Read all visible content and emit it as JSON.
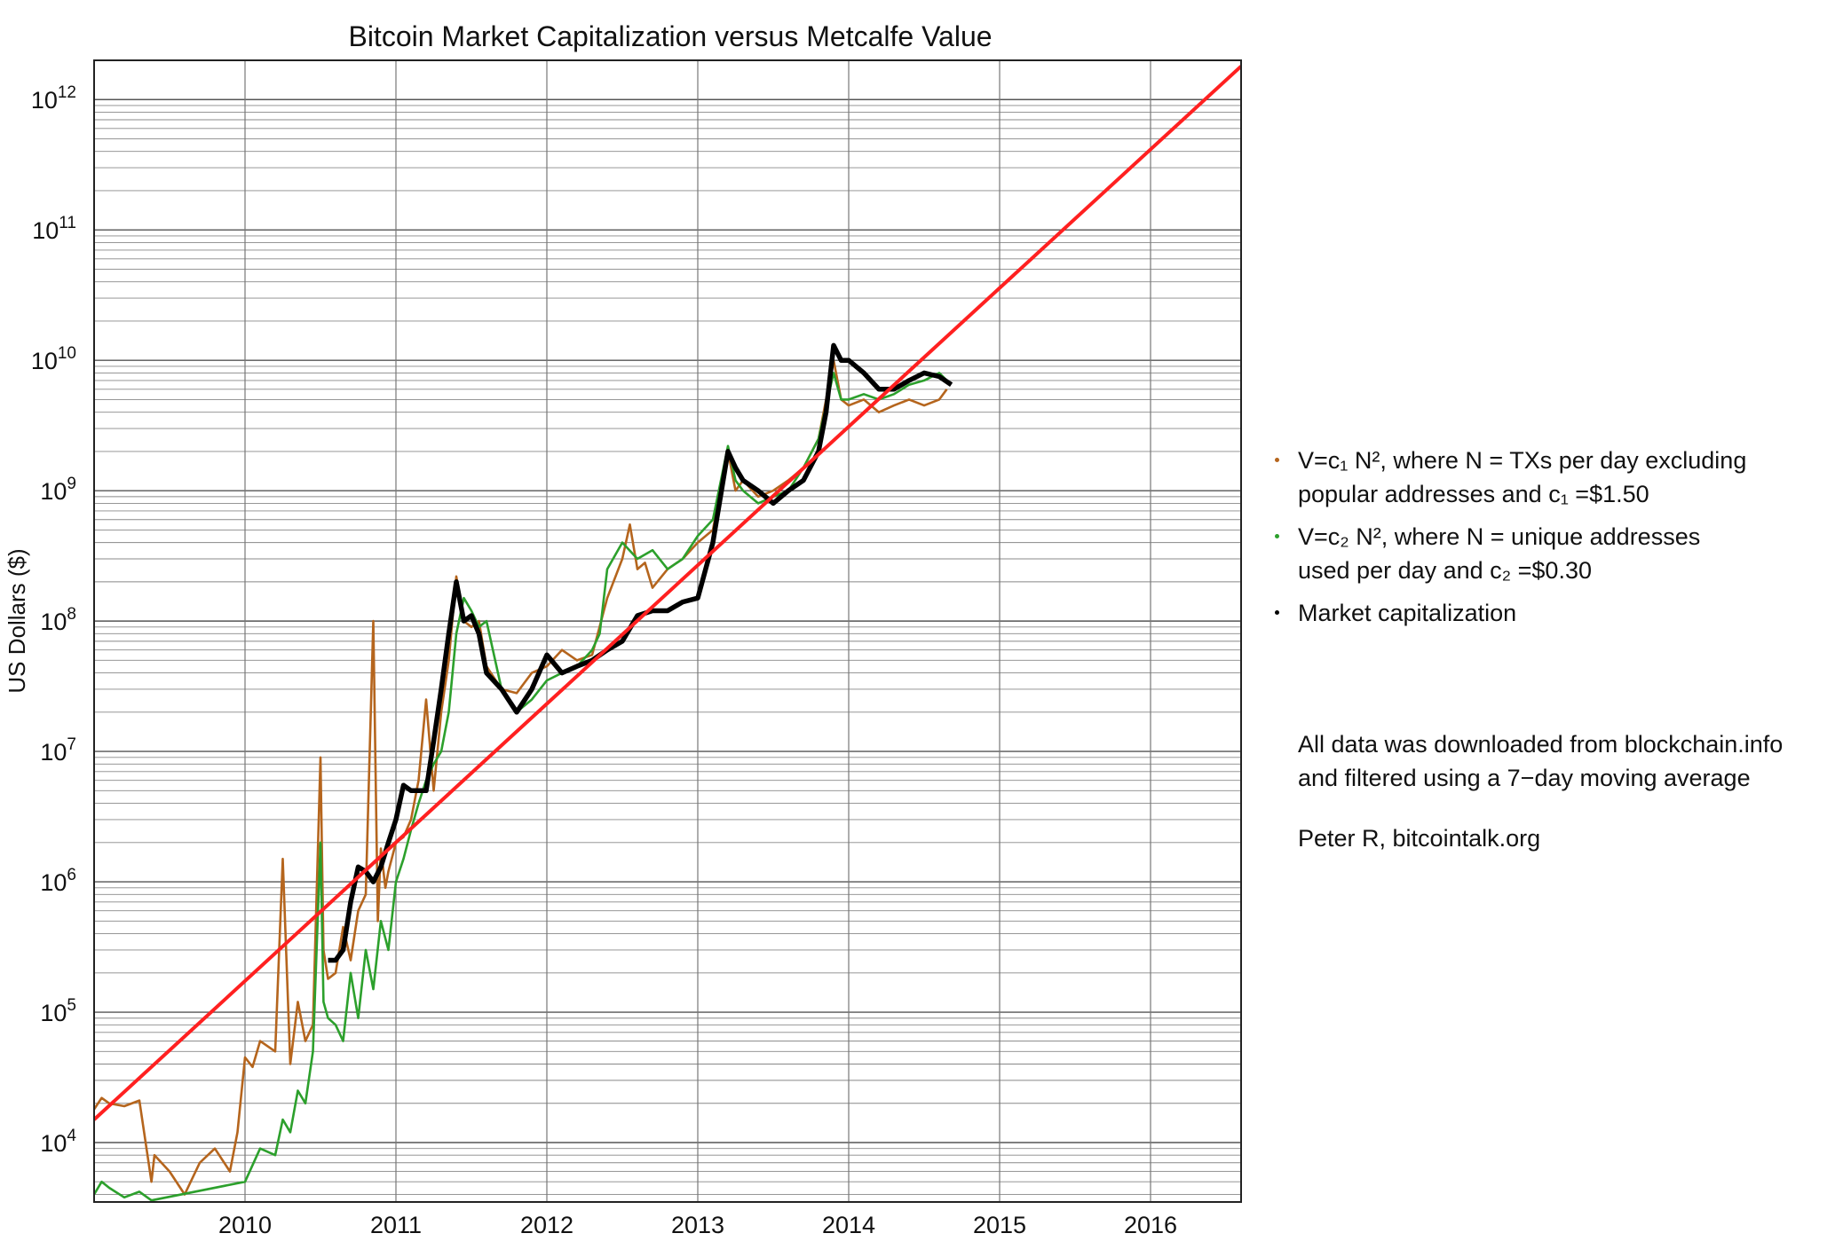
{
  "chart_data": {
    "type": "line",
    "title": "Bitcoin Market Capitalization versus Metcalfe Value",
    "ylabel": "US Dollars ($)",
    "xlabel": "",
    "x_scale": "time",
    "y_scale": "log",
    "xlim": [
      2009.0,
      2016.6
    ],
    "ylim": [
      3500,
      2000000000000
    ],
    "x_ticks": [
      2010,
      2011,
      2012,
      2013,
      2014,
      2015,
      2016
    ],
    "x_tick_labels": [
      "2010",
      "2011",
      "2012",
      "2013",
      "2014",
      "2015",
      "2016"
    ],
    "y_ticks": [
      10000,
      100000,
      1000000,
      10000000,
      100000000,
      1000000000,
      10000000000,
      100000000000,
      1000000000000
    ],
    "y_tick_labels": [
      {
        "base": "10",
        "exp": "4"
      },
      {
        "base": "10",
        "exp": "5"
      },
      {
        "base": "10",
        "exp": "6"
      },
      {
        "base": "10",
        "exp": "7"
      },
      {
        "base": "10",
        "exp": "8"
      },
      {
        "base": "10",
        "exp": "9"
      },
      {
        "base": "10",
        "exp": "10"
      },
      {
        "base": "10",
        "exp": "11"
      },
      {
        "base": "10",
        "exp": "12"
      }
    ],
    "grid": true,
    "legend_position": "right",
    "series": [
      {
        "name": "V=c1 N^2, where N = TXs per day excluding popular addresses and c1 =$1.50",
        "color": "#b5651d",
        "x": [
          2009.0,
          2009.05,
          2009.1,
          2009.2,
          2009.3,
          2009.38,
          2009.4,
          2009.5,
          2009.6,
          2009.7,
          2009.8,
          2009.9,
          2009.95,
          2010.0,
          2010.05,
          2010.1,
          2010.2,
          2010.25,
          2010.3,
          2010.35,
          2010.4,
          2010.45,
          2010.5,
          2010.52,
          2010.55,
          2010.6,
          2010.65,
          2010.7,
          2010.75,
          2010.8,
          2010.85,
          2010.88,
          2010.9,
          2010.93,
          2010.95,
          2011.0,
          2011.05,
          2011.1,
          2011.15,
          2011.2,
          2011.25,
          2011.3,
          2011.35,
          2011.4,
          2011.45,
          2011.5,
          2011.55,
          2011.6,
          2011.7,
          2011.8,
          2011.9,
          2012.0,
          2012.1,
          2012.2,
          2012.3,
          2012.4,
          2012.5,
          2012.55,
          2012.6,
          2012.65,
          2012.7,
          2012.8,
          2012.9,
          2013.0,
          2013.1,
          2013.2,
          2013.25,
          2013.3,
          2013.4,
          2013.5,
          2013.6,
          2013.7,
          2013.8,
          2013.9,
          2013.95,
          2014.0,
          2014.1,
          2014.2,
          2014.3,
          2014.4,
          2014.5,
          2014.6,
          2014.65
        ],
        "values": [
          18000,
          22000,
          20000,
          19000,
          21000,
          5000,
          8000,
          6000,
          4000,
          7000,
          9000,
          6000,
          12000,
          45000,
          38000,
          60000,
          50000,
          1500000,
          40000,
          120000,
          60000,
          80000,
          9000000,
          300000,
          180000,
          200000,
          450000,
          250000,
          600000,
          800000,
          100000000,
          500000,
          1800000,
          900000,
          1200000,
          2000000,
          2200000,
          3000000,
          6000000,
          25000000,
          5000000,
          20000000,
          50000000,
          220000000,
          100000000,
          90000000,
          100000000,
          45000000,
          30000000,
          28000000,
          40000000,
          45000000,
          60000000,
          50000000,
          55000000,
          150000000,
          300000000,
          550000000,
          250000000,
          280000000,
          180000000,
          250000000,
          300000000,
          400000000,
          500000000,
          2000000000,
          1000000000,
          1200000000,
          900000000,
          1000000000,
          1200000000,
          1500000000,
          2500000000,
          10000000000,
          5000000000,
          4500000000,
          5000000000,
          4000000000,
          4500000000,
          5000000000,
          4500000000,
          5000000000,
          6000000000
        ]
      },
      {
        "name": "V=c2 N^2, where N = unique addresses used per day and c2 =$0.30",
        "color": "#2ca02c",
        "x": [
          2009.0,
          2009.05,
          2009.1,
          2009.2,
          2009.3,
          2009.38,
          2010.0,
          2010.1,
          2010.2,
          2010.25,
          2010.3,
          2010.35,
          2010.4,
          2010.45,
          2010.5,
          2010.52,
          2010.55,
          2010.6,
          2010.65,
          2010.7,
          2010.75,
          2010.8,
          2010.85,
          2010.9,
          2010.95,
          2011.0,
          2011.05,
          2011.1,
          2011.15,
          2011.2,
          2011.25,
          2011.3,
          2011.35,
          2011.4,
          2011.45,
          2011.5,
          2011.55,
          2011.6,
          2011.7,
          2011.8,
          2011.9,
          2012.0,
          2012.1,
          2012.2,
          2012.3,
          2012.35,
          2012.4,
          2012.5,
          2012.6,
          2012.7,
          2012.8,
          2012.9,
          2013.0,
          2013.1,
          2013.2,
          2013.25,
          2013.3,
          2013.4,
          2013.5,
          2013.6,
          2013.7,
          2013.8,
          2013.9,
          2013.95,
          2014.0,
          2014.1,
          2014.2,
          2014.3,
          2014.4,
          2014.5,
          2014.6,
          2014.65
        ],
        "values": [
          4000,
          5000,
          4500,
          3800,
          4200,
          3600,
          5000,
          9000,
          8000,
          15000,
          12000,
          25000,
          20000,
          50000,
          2000000,
          120000,
          90000,
          80000,
          60000,
          200000,
          90000,
          300000,
          150000,
          500000,
          300000,
          1000000,
          1500000,
          2500000,
          4000000,
          6000000,
          8000000,
          10000000,
          20000000,
          80000000,
          150000000,
          120000000,
          90000000,
          100000000,
          30000000,
          20000000,
          25000000,
          35000000,
          40000000,
          45000000,
          60000000,
          80000000,
          250000000,
          400000000,
          300000000,
          350000000,
          250000000,
          300000000,
          450000000,
          600000000,
          2200000000,
          1200000000,
          1000000000,
          800000000,
          900000000,
          1000000000,
          1500000000,
          2500000000,
          8000000000,
          5000000000,
          5000000000,
          5500000000,
          5000000000,
          5500000000,
          6500000000,
          7000000000,
          8000000000,
          7000000000
        ]
      },
      {
        "name": "Market capitalization",
        "color": "#000000",
        "x": [
          2010.55,
          2010.6,
          2010.65,
          2010.7,
          2010.75,
          2010.8,
          2010.85,
          2010.9,
          2010.95,
          2011.0,
          2011.05,
          2011.1,
          2011.15,
          2011.2,
          2011.25,
          2011.3,
          2011.35,
          2011.4,
          2011.45,
          2011.5,
          2011.55,
          2011.6,
          2011.7,
          2011.8,
          2011.9,
          2012.0,
          2012.1,
          2012.2,
          2012.3,
          2012.4,
          2012.5,
          2012.6,
          2012.7,
          2012.8,
          2012.9,
          2013.0,
          2013.1,
          2013.2,
          2013.25,
          2013.3,
          2013.4,
          2013.5,
          2013.6,
          2013.7,
          2013.8,
          2013.85,
          2013.9,
          2013.95,
          2014.0,
          2014.1,
          2014.2,
          2014.3,
          2014.4,
          2014.5,
          2014.6,
          2014.68
        ],
        "values": [
          250000,
          250000,
          300000,
          700000,
          1300000,
          1200000,
          1000000,
          1300000,
          2000000,
          3000000,
          5500000,
          5000000,
          5000000,
          5000000,
          12000000,
          30000000,
          80000000,
          200000000,
          100000000,
          110000000,
          80000000,
          40000000,
          30000000,
          20000000,
          30000000,
          55000000,
          40000000,
          45000000,
          50000000,
          60000000,
          70000000,
          110000000,
          120000000,
          120000000,
          140000000,
          150000000,
          400000000,
          2000000000,
          1500000000,
          1200000000,
          1000000000,
          800000000,
          1000000000,
          1200000000,
          2000000000,
          4000000000,
          13000000000,
          10000000000,
          10000000000,
          8000000000,
          6000000000,
          6000000000,
          7000000000,
          8000000000,
          7500000000,
          6500000000
        ]
      },
      {
        "name": "",
        "color": "#ff2020",
        "x": [
          2009.0,
          2016.6
        ],
        "values": [
          15000,
          1800000000000
        ]
      }
    ]
  },
  "legend": {
    "items": [
      {
        "color": "#b5651d",
        "line1": "V=c₁ N², where N = TXs per day excluding",
        "line2": "popular addresses and c₁ =$1.50"
      },
      {
        "color": "#2ca02c",
        "line1": "V=c₂ N², where N = unique addresses",
        "line2": "used per day and c₂ =$0.30"
      },
      {
        "color": "#000000",
        "line1": "Market capitalization",
        "line2": ""
      }
    ]
  },
  "notes": {
    "line1": "All data was downloaded from blockchain.info",
    "line2": "and filtered using a 7−day moving average",
    "credit": "Peter R, bitcointalk.org"
  }
}
